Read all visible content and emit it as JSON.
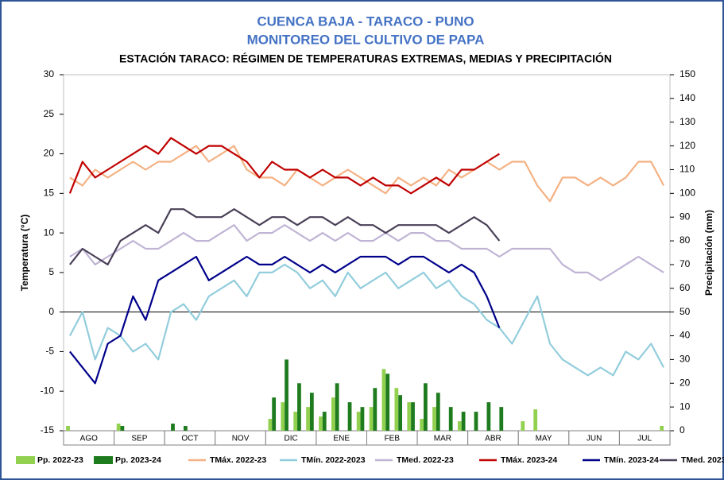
{
  "chart_data": {
    "type": "line",
    "title": "CUENCA BAJA - TARACO - PUNO",
    "subtitle": "MONITOREO DEL CULTIVO DE PAPA",
    "caption": "ESTACIÓN TARACO: RÉGIMEN DE TEMPERATURAS EXTREMAS, MEDIAS Y PRECIPITACIÓN",
    "y_label": "Temperatura (°C)",
    "y2_label": "Precipitación (mm)",
    "categories": [
      "AGO",
      null,
      null,
      null,
      "SEP",
      null,
      null,
      null,
      "OCT",
      null,
      null,
      null,
      "NOV",
      null,
      null,
      null,
      "DIC",
      null,
      null,
      null,
      "ENE",
      null,
      null,
      null,
      "FEB",
      null,
      null,
      null,
      "MAR",
      null,
      null,
      null,
      "ABR",
      null,
      null,
      null,
      "MAY",
      null,
      null,
      null,
      "JUN",
      null,
      null,
      null,
      "JUL",
      null,
      null,
      null
    ],
    "ylim": [
      -15,
      30
    ],
    "yticks": [
      -15,
      -10,
      -5,
      0,
      5,
      10,
      15,
      20,
      25,
      30
    ],
    "y2lim": [
      0,
      150
    ],
    "y2ticks": [
      0,
      10,
      20,
      30,
      40,
      50,
      60,
      70,
      80,
      90,
      100,
      110,
      120,
      130,
      140,
      150
    ],
    "series": [
      {
        "name": "Pp. 2022-23",
        "type": "bar",
        "axis": "y2",
        "color": "#92d050",
        "values": [
          2,
          0,
          0,
          0,
          3,
          0,
          0,
          0,
          0,
          0,
          0,
          0,
          0,
          0,
          0,
          0,
          5,
          12,
          8,
          10,
          6,
          14,
          0,
          8,
          10,
          26,
          18,
          12,
          5,
          10,
          0,
          4,
          0,
          0,
          0,
          0,
          4,
          9,
          0,
          0,
          0,
          0,
          0,
          0,
          0,
          0,
          0,
          2
        ]
      },
      {
        "name": "Pp. 2023-24",
        "type": "bar",
        "axis": "y2",
        "color": "#1e7b1e",
        "values": [
          0,
          0,
          0,
          0,
          2,
          0,
          0,
          0,
          3,
          2,
          0,
          0,
          0,
          0,
          0,
          0,
          14,
          30,
          20,
          16,
          8,
          20,
          12,
          10,
          18,
          24,
          15,
          12,
          20,
          16,
          10,
          8,
          8,
          12,
          10,
          0,
          null,
          null,
          null,
          null,
          null,
          null,
          null,
          null,
          null,
          null,
          null,
          null
        ]
      },
      {
        "name": "TMáx. 2022-23",
        "color": "#f4b183",
        "values": [
          17,
          16,
          18,
          17,
          18,
          19,
          18,
          19,
          19,
          20,
          21,
          19,
          20,
          21,
          18,
          17,
          17,
          16,
          18,
          17,
          16,
          17,
          18,
          17,
          16,
          15,
          17,
          16,
          17,
          16,
          18,
          17,
          18,
          19,
          18,
          19,
          19,
          16,
          14,
          17,
          17,
          16,
          17,
          16,
          17,
          19,
          19,
          16
        ]
      },
      {
        "name": "TMín. 2022-2023",
        "color": "#92cddc",
        "values": [
          -3,
          0,
          -6,
          -2,
          -3,
          -5,
          -4,
          -6,
          0,
          1,
          -1,
          2,
          3,
          4,
          2,
          5,
          5,
          6,
          5,
          3,
          4,
          2,
          5,
          3,
          4,
          5,
          3,
          4,
          5,
          3,
          4,
          2,
          1,
          -1,
          -2,
          -4,
          -1,
          2,
          -4,
          -6,
          -7,
          -8,
          -7,
          -8,
          -5,
          -6,
          -4,
          -7
        ]
      },
      {
        "name": "TMed. 2022-23",
        "color": "#c0b4d4",
        "values": [
          7,
          8,
          6,
          7,
          8,
          9,
          8,
          8,
          9,
          10,
          9,
          9,
          10,
          11,
          9,
          10,
          10,
          11,
          10,
          9,
          10,
          9,
          10,
          9,
          9,
          10,
          9,
          10,
          10,
          9,
          9,
          8,
          8,
          8,
          7,
          8,
          8,
          8,
          8,
          6,
          5,
          5,
          4,
          5,
          6,
          7,
          6,
          5
        ]
      },
      {
        "name": "TMáx. 2023-24",
        "color": "#c00000",
        "values": [
          15,
          19,
          17,
          18,
          19,
          20,
          21,
          20,
          22,
          21,
          20,
          21,
          21,
          20,
          19,
          17,
          19,
          18,
          18,
          17,
          18,
          17,
          17,
          16,
          17,
          16,
          16,
          15,
          16,
          17,
          16,
          18,
          18,
          19,
          20,
          null,
          null,
          null,
          null,
          null,
          null,
          null,
          null,
          null,
          null,
          null,
          null,
          null
        ]
      },
      {
        "name": "TMín. 2023-24",
        "color": "#00008b",
        "values": [
          -5,
          -7,
          -9,
          -4,
          -3,
          2,
          -1,
          4,
          5,
          6,
          7,
          4,
          5,
          6,
          7,
          6,
          6,
          7,
          6,
          5,
          6,
          5,
          6,
          7,
          7,
          7,
          6,
          7,
          7,
          6,
          5,
          6,
          5,
          2,
          -2,
          null,
          null,
          null,
          null,
          null,
          null,
          null,
          null,
          null,
          null,
          null,
          null,
          null
        ]
      },
      {
        "name": "TMed. 2023-24",
        "color": "#4a4058",
        "values": [
          6,
          8,
          7,
          6,
          9,
          10,
          11,
          10,
          13,
          13,
          12,
          12,
          12,
          13,
          12,
          11,
          12,
          12,
          11,
          12,
          12,
          11,
          12,
          11,
          11,
          10,
          11,
          11,
          11,
          11,
          10,
          11,
          12,
          11,
          9,
          null,
          null,
          null,
          null,
          null,
          null,
          null,
          null,
          null,
          null,
          null,
          null,
          null
        ]
      }
    ]
  }
}
